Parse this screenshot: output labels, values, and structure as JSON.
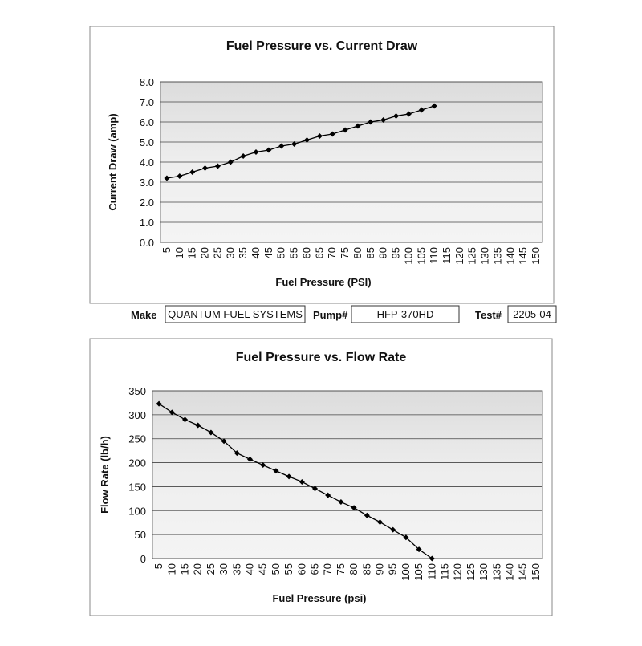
{
  "chart_data": [
    {
      "type": "line",
      "title": "Fuel Pressure vs. Current Draw",
      "x_label": "Fuel Pressure (PSI)",
      "y_label": "Current Draw (amp)",
      "categories": [
        "5",
        "10",
        "15",
        "20",
        "25",
        "30",
        "35",
        "40",
        "45",
        "50",
        "55",
        "60",
        "65",
        "70",
        "75",
        "80",
        "85",
        "90",
        "95",
        "100",
        "105",
        "110",
        "115",
        "120",
        "125",
        "130",
        "135",
        "140",
        "145",
        "150"
      ],
      "series": [
        {
          "name": "Current Draw",
          "color": "#000000",
          "values": [
            3.2,
            3.3,
            3.5,
            3.7,
            3.8,
            4.0,
            4.3,
            4.5,
            4.6,
            4.8,
            4.9,
            5.1,
            5.3,
            5.4,
            5.6,
            5.8,
            6.0,
            6.1,
            6.3,
            6.4,
            6.6,
            6.8,
            null,
            null,
            null,
            null,
            null,
            null,
            null,
            null
          ]
        }
      ],
      "ylim": [
        0,
        8
      ],
      "yticks": [
        {
          "value": 0,
          "label": "0.0"
        },
        {
          "value": 1,
          "label": "1.0"
        },
        {
          "value": 2,
          "label": "2.0"
        },
        {
          "value": 3,
          "label": "3.0"
        },
        {
          "value": 4,
          "label": "4.0"
        },
        {
          "value": 5,
          "label": "5.0"
        },
        {
          "value": 6,
          "label": "6.0"
        },
        {
          "value": 7,
          "label": "7.0"
        },
        {
          "value": 8,
          "label": "8.0"
        }
      ],
      "grid": true
    },
    {
      "type": "line",
      "title": "Fuel Pressure vs. Flow Rate",
      "x_label": "Fuel Pressure (psi)",
      "y_label": "Flow Rate (lb/h)",
      "categories": [
        "5",
        "10",
        "15",
        "20",
        "25",
        "30",
        "35",
        "40",
        "45",
        "50",
        "55",
        "60",
        "65",
        "70",
        "75",
        "80",
        "85",
        "90",
        "95",
        "100",
        "105",
        "110",
        "115",
        "120",
        "125",
        "130",
        "135",
        "140",
        "145",
        "150"
      ],
      "series": [
        {
          "name": "Flow Rate",
          "color": "#000000",
          "values": [
            323,
            305,
            290,
            278,
            263,
            245,
            220,
            207,
            195,
            183,
            171,
            160,
            146,
            132,
            118,
            106,
            90,
            76,
            60,
            44,
            19,
            0,
            null,
            null,
            null,
            null,
            null,
            null,
            null,
            null
          ]
        }
      ],
      "ylim": [
        0,
        350
      ],
      "yticks": [
        0,
        50,
        100,
        150,
        200,
        250,
        300,
        350
      ],
      "grid": true
    }
  ],
  "form": {
    "make_label": "Make",
    "make": "QUANTUM FUEL SYSTEMS",
    "pump_label": "Pump#",
    "pump": "HFP-370HD",
    "test_label": "Test#",
    "test": "2205-04"
  }
}
